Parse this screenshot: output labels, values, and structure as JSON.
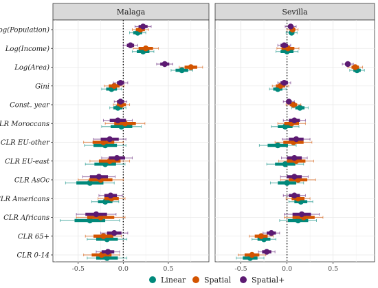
{
  "chart_data": {
    "type": "scatter",
    "subtype": "coefficient-plot",
    "panels": [
      "Malaga",
      "Sevilla"
    ],
    "categories": [
      "Log(Population)",
      "Log(Income)",
      "Log(Area)",
      "Gini",
      "Const. year",
      "CLR Moroccans",
      "CLR EU-other",
      "CLR EU-east",
      "CLR AsOc",
      "CLR Americans",
      "CLR Africans",
      "CLR 65+",
      "CLR 0-14"
    ],
    "x_ticks": [
      "-0.5",
      "0.0",
      "0.5"
    ],
    "xlim": [
      -0.78,
      0.95
    ],
    "reference_line_x": 0,
    "legend": {
      "position": "bottom",
      "entries": [
        "Linear",
        "Spatial",
        "Spatial+"
      ]
    },
    "colors": {
      "Linear": "#00897b",
      "Spatial": "#d35400",
      "Spatial+": "#5c1a72"
    },
    "series": [
      {
        "name": "Linear",
        "Malaga": {
          "estimate": [
            0.16,
            0.22,
            0.65,
            -0.13,
            -0.06,
            -0.02,
            -0.2,
            -0.2,
            -0.37,
            -0.2,
            -0.37,
            -0.18,
            -0.18
          ],
          "ci_inner": [
            [
              0.11,
              0.21
            ],
            [
              0.15,
              0.29
            ],
            [
              0.58,
              0.72
            ],
            [
              -0.19,
              -0.07
            ],
            [
              -0.11,
              -0.01
            ],
            [
              -0.14,
              0.1
            ],
            [
              -0.33,
              -0.07
            ],
            [
              -0.32,
              -0.08
            ],
            [
              -0.52,
              -0.22
            ],
            [
              -0.28,
              -0.12
            ],
            [
              -0.54,
              -0.2
            ],
            [
              -0.3,
              -0.06
            ],
            [
              -0.3,
              -0.06
            ]
          ],
          "ci_outer": [
            [
              0.07,
              0.25
            ],
            [
              0.1,
              0.34
            ],
            [
              0.53,
              0.77
            ],
            [
              -0.24,
              -0.02
            ],
            [
              -0.15,
              0.03
            ],
            [
              -0.24,
              0.2
            ],
            [
              -0.43,
              0.03
            ],
            [
              -0.42,
              0.02
            ],
            [
              -0.64,
              -0.1
            ],
            [
              -0.35,
              -0.05
            ],
            [
              -0.7,
              -0.04
            ],
            [
              -0.4,
              0.04
            ],
            [
              -0.4,
              0.04
            ]
          ]
        },
        "Sevilla": {
          "estimate": [
            0.05,
            0.0,
            0.76,
            -0.1,
            0.14,
            -0.02,
            -0.1,
            -0.02,
            0.0,
            0.15,
            0.12,
            -0.25,
            -0.4
          ],
          "ci_inner": [
            [
              0.02,
              0.08
            ],
            [
              -0.07,
              0.07
            ],
            [
              0.72,
              0.8
            ],
            [
              -0.15,
              -0.05
            ],
            [
              0.09,
              0.19
            ],
            [
              -0.1,
              0.06
            ],
            [
              -0.21,
              0.01
            ],
            [
              -0.13,
              0.09
            ],
            [
              -0.1,
              0.1
            ],
            [
              0.08,
              0.22
            ],
            [
              0.01,
              0.23
            ],
            [
              -0.32,
              -0.18
            ],
            [
              -0.48,
              -0.32
            ]
          ],
          "ci_outer": [
            [
              -0.01,
              0.11
            ],
            [
              -0.12,
              0.12
            ],
            [
              0.68,
              0.84
            ],
            [
              -0.19,
              -0.01
            ],
            [
              0.05,
              0.23
            ],
            [
              -0.17,
              0.13
            ],
            [
              -0.3,
              0.1
            ],
            [
              -0.22,
              0.18
            ],
            [
              -0.18,
              0.18
            ],
            [
              0.02,
              0.28
            ],
            [
              -0.08,
              0.32
            ],
            [
              -0.38,
              -0.12
            ],
            [
              -0.55,
              -0.25
            ]
          ]
        }
      },
      {
        "name": "Spatial",
        "Malaga": {
          "estimate": [
            0.19,
            0.25,
            0.75,
            -0.1,
            -0.02,
            0.02,
            -0.22,
            -0.15,
            -0.25,
            -0.13,
            -0.25,
            -0.22,
            -0.24
          ],
          "ci_inner": [
            [
              0.14,
              0.24
            ],
            [
              0.17,
              0.33
            ],
            [
              0.68,
              0.82
            ],
            [
              -0.16,
              -0.04
            ],
            [
              -0.07,
              0.03
            ],
            [
              -0.1,
              0.14
            ],
            [
              -0.34,
              -0.1
            ],
            [
              -0.27,
              -0.03
            ],
            [
              -0.38,
              -0.12
            ],
            [
              -0.21,
              -0.05
            ],
            [
              -0.4,
              -0.1
            ],
            [
              -0.33,
              -0.11
            ],
            [
              -0.35,
              -0.13
            ]
          ],
          "ci_outer": [
            [
              0.1,
              0.28
            ],
            [
              0.11,
              0.39
            ],
            [
              0.62,
              0.88
            ],
            [
              -0.21,
              0.01
            ],
            [
              -0.11,
              0.07
            ],
            [
              -0.2,
              0.24
            ],
            [
              -0.44,
              0.0
            ],
            [
              -0.37,
              0.07
            ],
            [
              -0.5,
              0.0
            ],
            [
              -0.28,
              0.02
            ],
            [
              -0.52,
              0.02
            ],
            [
              -0.42,
              -0.02
            ],
            [
              -0.44,
              -0.04
            ]
          ]
        },
        "Sevilla": {
          "estimate": [
            0.06,
            0.01,
            0.74,
            -0.07,
            0.07,
            0.05,
            0.07,
            0.1,
            0.12,
            0.12,
            0.18,
            -0.28,
            -0.38
          ],
          "ci_inner": [
            [
              0.03,
              0.09
            ],
            [
              -0.06,
              0.08
            ],
            [
              0.7,
              0.78
            ],
            [
              -0.12,
              -0.02
            ],
            [
              0.03,
              0.11
            ],
            [
              -0.03,
              0.13
            ],
            [
              -0.04,
              0.18
            ],
            [
              0.0,
              0.2
            ],
            [
              0.02,
              0.22
            ],
            [
              0.05,
              0.19
            ],
            [
              0.06,
              0.3
            ],
            [
              -0.35,
              -0.21
            ],
            [
              -0.46,
              -0.3
            ]
          ],
          "ci_outer": [
            [
              0.0,
              0.12
            ],
            [
              -0.11,
              0.13
            ],
            [
              0.66,
              0.82
            ],
            [
              -0.16,
              0.02
            ],
            [
              -0.01,
              0.15
            ],
            [
              -0.1,
              0.2
            ],
            [
              -0.13,
              0.27
            ],
            [
              -0.09,
              0.29
            ],
            [
              -0.07,
              0.31
            ],
            [
              -0.01,
              0.25
            ],
            [
              -0.03,
              0.39
            ],
            [
              -0.41,
              -0.15
            ],
            [
              -0.53,
              -0.23
            ]
          ]
        }
      },
      {
        "name": "Spatial+",
        "Malaga": {
          "estimate": [
            0.22,
            0.08,
            0.46,
            -0.03,
            -0.03,
            -0.06,
            -0.15,
            -0.07,
            -0.27,
            -0.14,
            -0.3,
            -0.1,
            -0.17
          ],
          "ci_inner": [
            [
              0.17,
              0.27
            ],
            [
              0.04,
              0.12
            ],
            [
              0.41,
              0.51
            ],
            [
              -0.07,
              0.01
            ],
            [
              -0.07,
              0.01
            ],
            [
              -0.15,
              0.03
            ],
            [
              -0.25,
              -0.05
            ],
            [
              -0.16,
              0.02
            ],
            [
              -0.37,
              -0.17
            ],
            [
              -0.21,
              -0.07
            ],
            [
              -0.42,
              -0.18
            ],
            [
              -0.18,
              -0.02
            ],
            [
              -0.24,
              -0.1
            ]
          ],
          "ci_outer": [
            [
              0.13,
              0.31
            ],
            [
              0.0,
              0.16
            ],
            [
              0.37,
              0.55
            ],
            [
              -0.11,
              0.05
            ],
            [
              -0.1,
              0.04
            ],
            [
              -0.22,
              0.1
            ],
            [
              -0.33,
              0.03
            ],
            [
              -0.24,
              0.1
            ],
            [
              -0.45,
              -0.09
            ],
            [
              -0.27,
              -0.01
            ],
            [
              -0.52,
              -0.08
            ],
            [
              -0.25,
              0.05
            ],
            [
              -0.3,
              -0.04
            ]
          ]
        },
        "Sevilla": {
          "estimate": [
            0.04,
            -0.03,
            0.66,
            -0.03,
            0.02,
            0.08,
            0.1,
            0.08,
            0.08,
            0.08,
            0.16,
            -0.17,
            -0.22
          ],
          "ci_inner": [
            [
              0.01,
              0.07
            ],
            [
              -0.07,
              0.01
            ],
            [
              0.63,
              0.69
            ],
            [
              -0.07,
              0.01
            ],
            [
              -0.01,
              0.05
            ],
            [
              0.02,
              0.14
            ],
            [
              0.02,
              0.18
            ],
            [
              0.0,
              0.16
            ],
            [
              0.0,
              0.16
            ],
            [
              0.02,
              0.14
            ],
            [
              0.06,
              0.26
            ],
            [
              -0.22,
              -0.12
            ],
            [
              -0.27,
              -0.17
            ]
          ],
          "ci_outer": [
            [
              -0.02,
              0.1
            ],
            [
              -0.1,
              0.04
            ],
            [
              0.6,
              0.72
            ],
            [
              -0.1,
              0.04
            ],
            [
              -0.04,
              0.08
            ],
            [
              -0.04,
              0.2
            ],
            [
              -0.05,
              0.25
            ],
            [
              -0.06,
              0.22
            ],
            [
              -0.07,
              0.23
            ],
            [
              -0.04,
              0.2
            ],
            [
              -0.03,
              0.35
            ],
            [
              -0.26,
              -0.08
            ],
            [
              -0.31,
              -0.13
            ]
          ]
        }
      }
    ]
  }
}
